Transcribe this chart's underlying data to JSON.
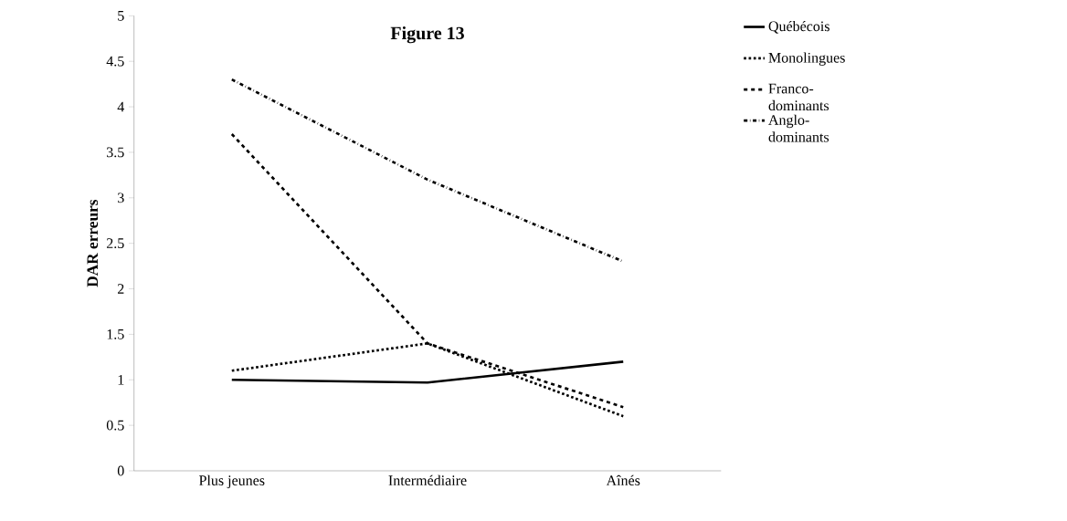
{
  "chart_data": {
    "type": "line",
    "title": "Figure 13",
    "ylabel": "DAR erreurs",
    "categories": [
      "Plus jeunes",
      "Intermédiaire",
      "Aînés"
    ],
    "series": [
      {
        "name": "Québécois",
        "color": "#000000",
        "line_style": "solid",
        "values": [
          1.0,
          0.97,
          1.2
        ]
      },
      {
        "name": "Monolingues",
        "color": "#000000",
        "line_style": "dotted",
        "values": [
          1.1,
          1.4,
          0.6
        ]
      },
      {
        "name": "Franco-dominants",
        "color": "#000000",
        "line_style": "dashed",
        "values": [
          3.7,
          1.4,
          0.7
        ]
      },
      {
        "name": "Anglo-dominants",
        "color": "#000000",
        "line_style": "dashdot",
        "values": [
          4.3,
          3.2,
          2.3
        ]
      }
    ],
    "ylim": [
      0,
      5
    ],
    "yticks": [
      0,
      0.5,
      1,
      1.5,
      2,
      2.5,
      3,
      3.5,
      4,
      4.5,
      5
    ],
    "grid": false,
    "legend": "right",
    "marker": "none"
  }
}
